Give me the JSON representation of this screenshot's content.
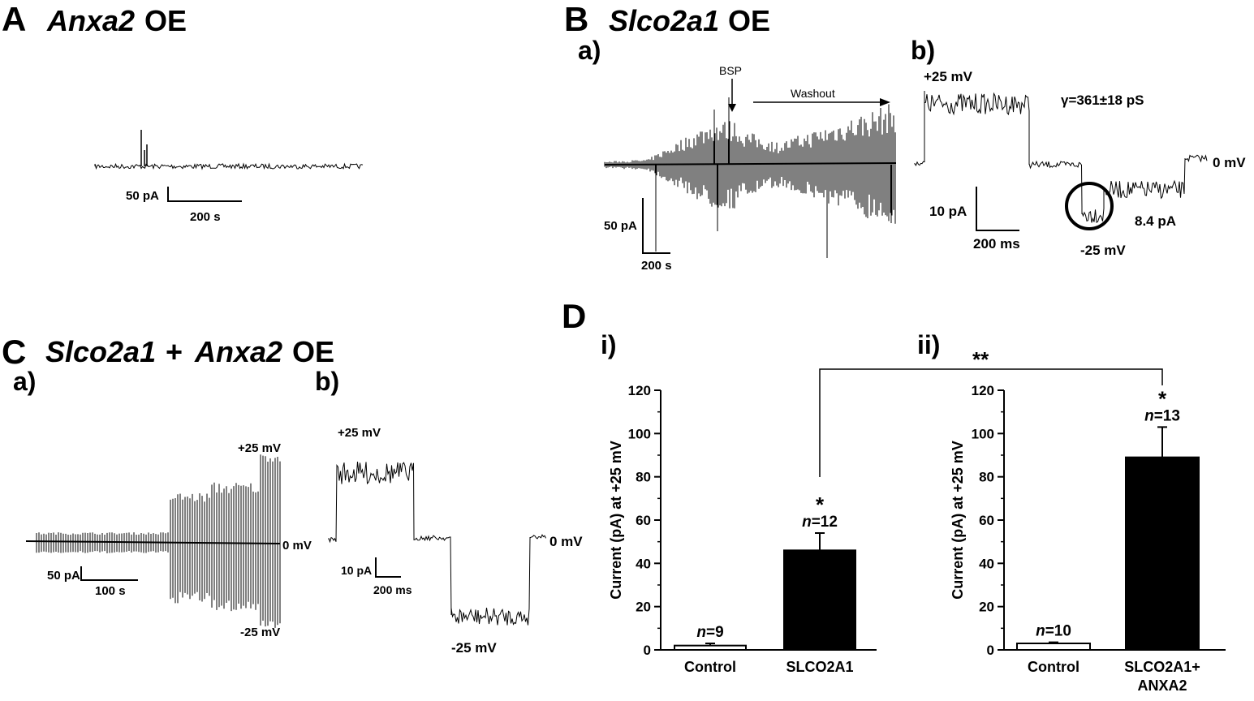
{
  "panels": {
    "A": {
      "letter": "A",
      "gene": "Anxa2",
      "suffix": "OE",
      "scale_y": "50 pA",
      "scale_x": "200 s"
    },
    "B": {
      "letter": "B",
      "gene": "Slco2a1",
      "suffix": "OE",
      "sub_a": "a)",
      "sub_b": "b)",
      "bsp_label": "BSP",
      "washout_label": "Washout",
      "a_scale_y": "50 pA",
      "a_scale_x": "200 s",
      "b_plus": "+25 mV",
      "b_zero": "0 mV",
      "b_minus": "-25 mV",
      "b_conductance": "γ=361±18 pS",
      "b_amp": "8.4 pA",
      "b_scale_y": "10 pA",
      "b_scale_x": "200 ms"
    },
    "C": {
      "letter": "C",
      "gene1": "Slco2a1",
      "plus": "+",
      "gene2": "Anxa2",
      "suffix": "OE",
      "sub_a": "a)",
      "sub_b": "b)",
      "a_plus": "+25 mV",
      "a_zero": "0 mV",
      "a_minus": "-25 mV",
      "a_scale_y": "50 pA",
      "a_scale_x": "100 s",
      "b_plus": "+25 mV",
      "b_zero": "0 mV",
      "b_minus": "-25 mV",
      "b_scale_y": "10 pA",
      "b_scale_x": "200 ms"
    },
    "D": {
      "letter": "D",
      "significance": "**"
    }
  },
  "chart_data": [
    {
      "type": "bar",
      "panel": "D i)",
      "label": "i)",
      "ylabel": "Current (pA) at +25 mV",
      "ylim": [
        0,
        120
      ],
      "yticks": [
        "0",
        "20",
        "40",
        "60",
        "80",
        "100",
        "120"
      ],
      "categories": [
        "Control",
        "SLCO2A1"
      ],
      "values": [
        2,
        46
      ],
      "errors": [
        1,
        8
      ],
      "fills": [
        "#ffffff",
        "#000000"
      ],
      "n_labels": [
        "n=9",
        "n=12"
      ],
      "stars": [
        "",
        "*"
      ]
    },
    {
      "type": "bar",
      "panel": "D ii)",
      "label": "ii)",
      "ylabel": "Current (pA) at +25 mV",
      "ylim": [
        0,
        120
      ],
      "yticks": [
        "0",
        "20",
        "40",
        "60",
        "80",
        "100",
        "120"
      ],
      "categories": [
        "Control",
        "SLCO2A1+ ANXA2"
      ],
      "category_lines": [
        [
          "Control"
        ],
        [
          "SLCO2A1+",
          "ANXA2"
        ]
      ],
      "values": [
        3,
        89
      ],
      "errors": [
        0.5,
        14
      ],
      "fills": [
        "#ffffff",
        "#000000"
      ],
      "n_labels": [
        "n=10",
        "n=13"
      ],
      "stars": [
        "",
        "*"
      ]
    }
  ]
}
